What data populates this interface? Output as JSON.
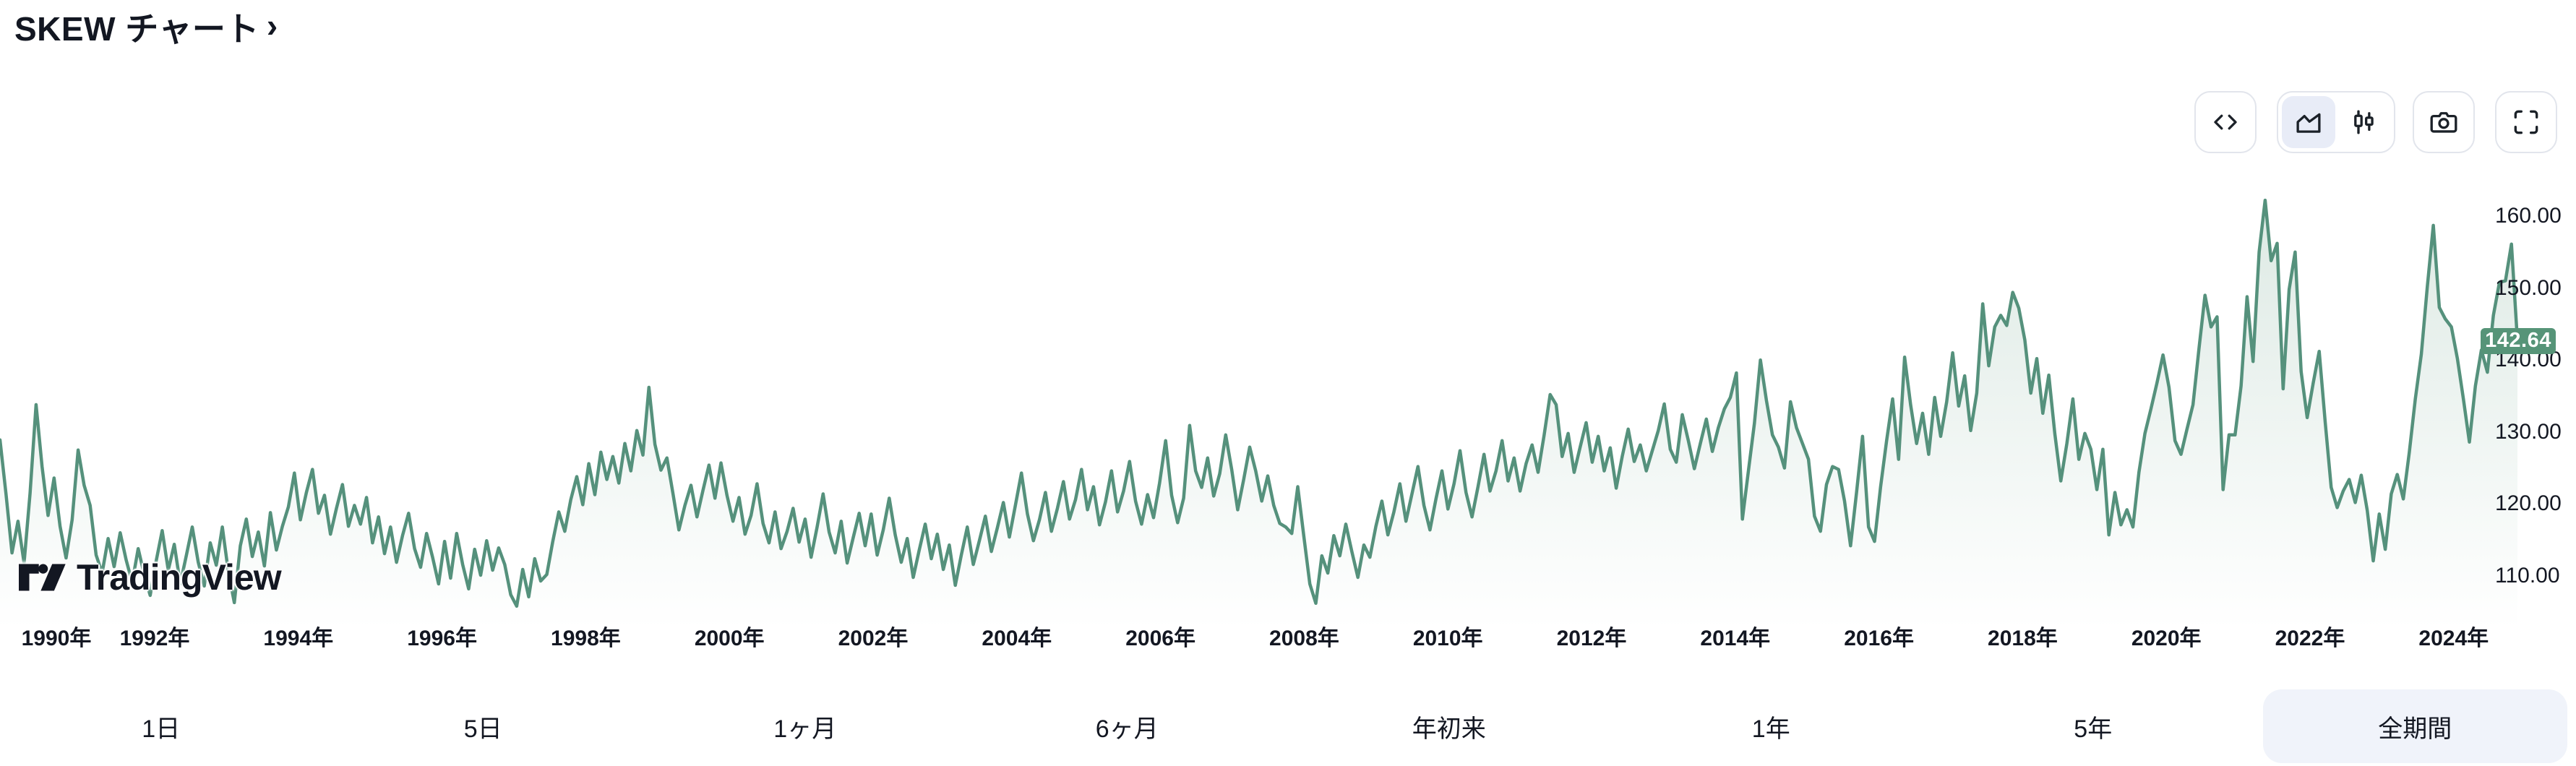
{
  "header": {
    "title": "SKEW チャート",
    "link_arrow": "›"
  },
  "toolbar": {
    "icons": [
      {
        "name": "embed-code-icon",
        "selected": false
      },
      {
        "name": "area-chart-icon",
        "selected": true
      },
      {
        "name": "candlestick-icon",
        "selected": false
      },
      {
        "name": "camera-icon",
        "selected": false
      },
      {
        "name": "fullscreen-icon",
        "selected": false
      }
    ]
  },
  "price_badge": {
    "value": "142.64",
    "color": "#569478"
  },
  "logo": {
    "text": "TradingView"
  },
  "range_selector": {
    "options": [
      "1日",
      "5日",
      "1ヶ月",
      "6ヶ月",
      "年初来",
      "1年",
      "5年",
      "全期間"
    ],
    "selected": "全期間"
  },
  "chart_data": {
    "type": "area",
    "title": "SKEW チャート",
    "legend": false,
    "grid": false,
    "x_range": [
      "1990-01",
      "2024-12"
    ],
    "ylim": [
      103,
      165
    ],
    "x_ticks": [
      1990,
      1992,
      1994,
      1996,
      1998,
      2000,
      2002,
      2004,
      2006,
      2008,
      2010,
      2012,
      2014,
      2016,
      2018,
      2020,
      2022,
      2024
    ],
    "x_tick_suffix": "年",
    "y_ticks": [
      "160.00",
      "150.00",
      "140.00",
      "130.00",
      "120.00",
      "110.00"
    ],
    "last_value": 142.64,
    "last_value_label": "142.64",
    "line_color": "#55917C",
    "fill_gradient_top": "rgba(86,148,120,0.20)",
    "fill_gradient_bottom": "rgba(86,148,120,0)",
    "series": {
      "name": "SKEW",
      "interval": "monthly",
      "segments": [
        {
          "year": 1990,
          "values": [
            128.9,
            121.4,
            113.2,
            117.6,
            111.8,
            121.5,
            133.8,
            125.2,
            118.4,
            123.6,
            116.9,
            112.5
          ]
        },
        {
          "year": 1991,
          "values": [
            117.8,
            127.5,
            122.6,
            119.8,
            112.9,
            110.4,
            115.2,
            111.3,
            116.0,
            112.2,
            109.1,
            113.8
          ]
        },
        {
          "year": 1992,
          "values": [
            110.2,
            107.3,
            112.1,
            116.3,
            110.8,
            114.4,
            108.9,
            112.8,
            116.8,
            111.9,
            108.6,
            114.6
          ]
        },
        {
          "year": 1993,
          "values": [
            111.5,
            116.8,
            110.6,
            106.3,
            114.2,
            117.9,
            112.7,
            116.1,
            111.4,
            118.8,
            113.6,
            116.9
          ]
        },
        {
          "year": 1994,
          "values": [
            119.6,
            124.3,
            117.8,
            121.6,
            124.8,
            118.7,
            121.2,
            115.8,
            119.4,
            122.7,
            116.9,
            119.8
          ]
        },
        {
          "year": 1995,
          "values": [
            117.2,
            120.9,
            114.6,
            118.2,
            113.1,
            116.8,
            111.9,
            115.6,
            118.7,
            113.8,
            111.2,
            115.9
          ]
        },
        {
          "year": 1996,
          "values": [
            112.6,
            108.9,
            114.8,
            109.7,
            115.9,
            111.6,
            108.2,
            113.7,
            110.1,
            114.9,
            110.8,
            113.9
          ]
        },
        {
          "year": 1997,
          "values": [
            111.6,
            107.4,
            105.8,
            110.9,
            107.1,
            112.4,
            109.3,
            110.2,
            114.8,
            118.9,
            116.2,
            120.6
          ]
        },
        {
          "year": 1998,
          "values": [
            123.8,
            119.9,
            125.6,
            121.3,
            127.2,
            123.4,
            126.6,
            122.9,
            128.4,
            124.6,
            130.2,
            126.8
          ]
        },
        {
          "year": 1999,
          "values": [
            136.2,
            128.3,
            124.7,
            126.4,
            121.5,
            116.4,
            119.8,
            122.6,
            118.2,
            121.9,
            125.4,
            120.8
          ]
        },
        {
          "year": 2000,
          "values": [
            125.7,
            121.2,
            117.6,
            120.9,
            115.8,
            118.4,
            122.8,
            117.3,
            114.6,
            118.9,
            113.8,
            116.2
          ]
        },
        {
          "year": 2001,
          "values": [
            119.4,
            114.7,
            117.9,
            112.6,
            116.8,
            121.4,
            116.1,
            113.2,
            117.6,
            111.8,
            115.3,
            118.7
          ]
        },
        {
          "year": 2002,
          "values": [
            114.2,
            118.6,
            112.9,
            116.4,
            120.8,
            115.7,
            111.9,
            115.2,
            109.8,
            113.6,
            117.2,
            112.4
          ]
        },
        {
          "year": 2003,
          "values": [
            115.8,
            110.9,
            114.3,
            108.7,
            112.9,
            116.8,
            111.6,
            114.9,
            118.3,
            113.4,
            116.7,
            120.2
          ]
        },
        {
          "year": 2004,
          "values": [
            115.4,
            119.8,
            124.3,
            118.6,
            114.9,
            117.8,
            121.6,
            116.2,
            119.4,
            123.1,
            117.9,
            120.6
          ]
        },
        {
          "year": 2005,
          "values": [
            124.8,
            119.2,
            122.4,
            117.1,
            120.3,
            124.6,
            118.9,
            121.8,
            125.9,
            120.4,
            117.2,
            121.3
          ]
        },
        {
          "year": 2006,
          "values": [
            118.1,
            122.9,
            128.8,
            121.2,
            117.4,
            120.8,
            130.9,
            124.6,
            122.3,
            126.4,
            121.1,
            124.2
          ]
        },
        {
          "year": 2007,
          "values": [
            129.6,
            124.8,
            119.2,
            123.4,
            127.9,
            124.6,
            120.4,
            123.9,
            119.8,
            117.3,
            116.8,
            115.9
          ]
        },
        {
          "year": 2008,
          "values": [
            122.4,
            115.6,
            108.9,
            106.2,
            112.8,
            110.4,
            115.6,
            112.8,
            117.2,
            113.4,
            109.8,
            114.3
          ]
        },
        {
          "year": 2009,
          "values": [
            112.6,
            116.9,
            120.4,
            115.7,
            118.9,
            122.8,
            117.6,
            121.4,
            125.2,
            119.8,
            116.4,
            120.7
          ]
        },
        {
          "year": 2010,
          "values": [
            124.6,
            119.3,
            122.8,
            127.4,
            121.6,
            118.2,
            122.4,
            126.9,
            121.8,
            124.6,
            128.8,
            123.2
          ]
        },
        {
          "year": 2011,
          "values": [
            126.4,
            121.8,
            125.6,
            128.2,
            124.4,
            129.6,
            135.2,
            133.8,
            126.6,
            129.8,
            124.4,
            127.9
          ]
        },
        {
          "year": 2012,
          "values": [
            131.3,
            125.8,
            129.4,
            124.6,
            127.8,
            122.2,
            126.6,
            130.4,
            125.9,
            128.2,
            124.6,
            127.4
          ]
        },
        {
          "year": 2013,
          "values": [
            130.2,
            133.9,
            127.6,
            125.8,
            132.4,
            128.8,
            124.9,
            128.4,
            131.8,
            127.3,
            130.6,
            133.2
          ]
        },
        {
          "year": 2014,
          "values": [
            134.8,
            138.2,
            117.9,
            124.6,
            131.2,
            140.0,
            134.4,
            129.6,
            127.9,
            125.0,
            134.2,
            130.6
          ]
        },
        {
          "year": 2015,
          "values": [
            128.4,
            126.2,
            118.3,
            116.2,
            122.7,
            125.2,
            124.8,
            120.4,
            114.2,
            121.6,
            129.4,
            116.8
          ]
        },
        {
          "year": 2016,
          "values": [
            114.8,
            122.4,
            128.8,
            134.6,
            126.2,
            140.4,
            133.8,
            128.4,
            132.6,
            126.9,
            134.8,
            129.4
          ]
        },
        {
          "year": 2017,
          "values": [
            134.2,
            141.0,
            133.6,
            137.8,
            130.2,
            135.4,
            147.8,
            139.2,
            144.6,
            146.2,
            144.8,
            149.4
          ]
        },
        {
          "year": 2018,
          "values": [
            147.2,
            142.8,
            135.4,
            140.2,
            132.6,
            137.9,
            129.8,
            123.2,
            128.4,
            134.6,
            126.2,
            129.8
          ]
        },
        {
          "year": 2019,
          "values": [
            127.6,
            122.0,
            127.6,
            115.7,
            121.6,
            117.1,
            119.2,
            116.8,
            124.4,
            129.8,
            133.2,
            136.8
          ]
        },
        {
          "year": 2020,
          "values": [
            140.7,
            136.2,
            128.8,
            126.9,
            130.4,
            133.8,
            141.6,
            149.0,
            144.6,
            146.0,
            122.0,
            129.6
          ]
        },
        {
          "year": 2021,
          "values": [
            129.6,
            136.4,
            148.8,
            139.8,
            155.0,
            162.2,
            153.8,
            156.2,
            136.0,
            149.8,
            155.0,
            138.4
          ]
        },
        {
          "year": 2022,
          "values": [
            132.0,
            136.8,
            141.2,
            131.4,
            122.3,
            119.5,
            121.8,
            123.4,
            120.2,
            124.0,
            119.1,
            112.1
          ]
        },
        {
          "year": 2023,
          "values": [
            118.6,
            113.7,
            121.4,
            124.1,
            120.7,
            127.2,
            134.6,
            140.8,
            150.2,
            158.7,
            147.3,
            145.7
          ]
        },
        {
          "year": 2024,
          "values": [
            144.6,
            140.2,
            134.6,
            128.6,
            136.4,
            141.4,
            138.3,
            146.2,
            150.8,
            151.0,
            156.1,
            142.64
          ]
        }
      ]
    }
  }
}
